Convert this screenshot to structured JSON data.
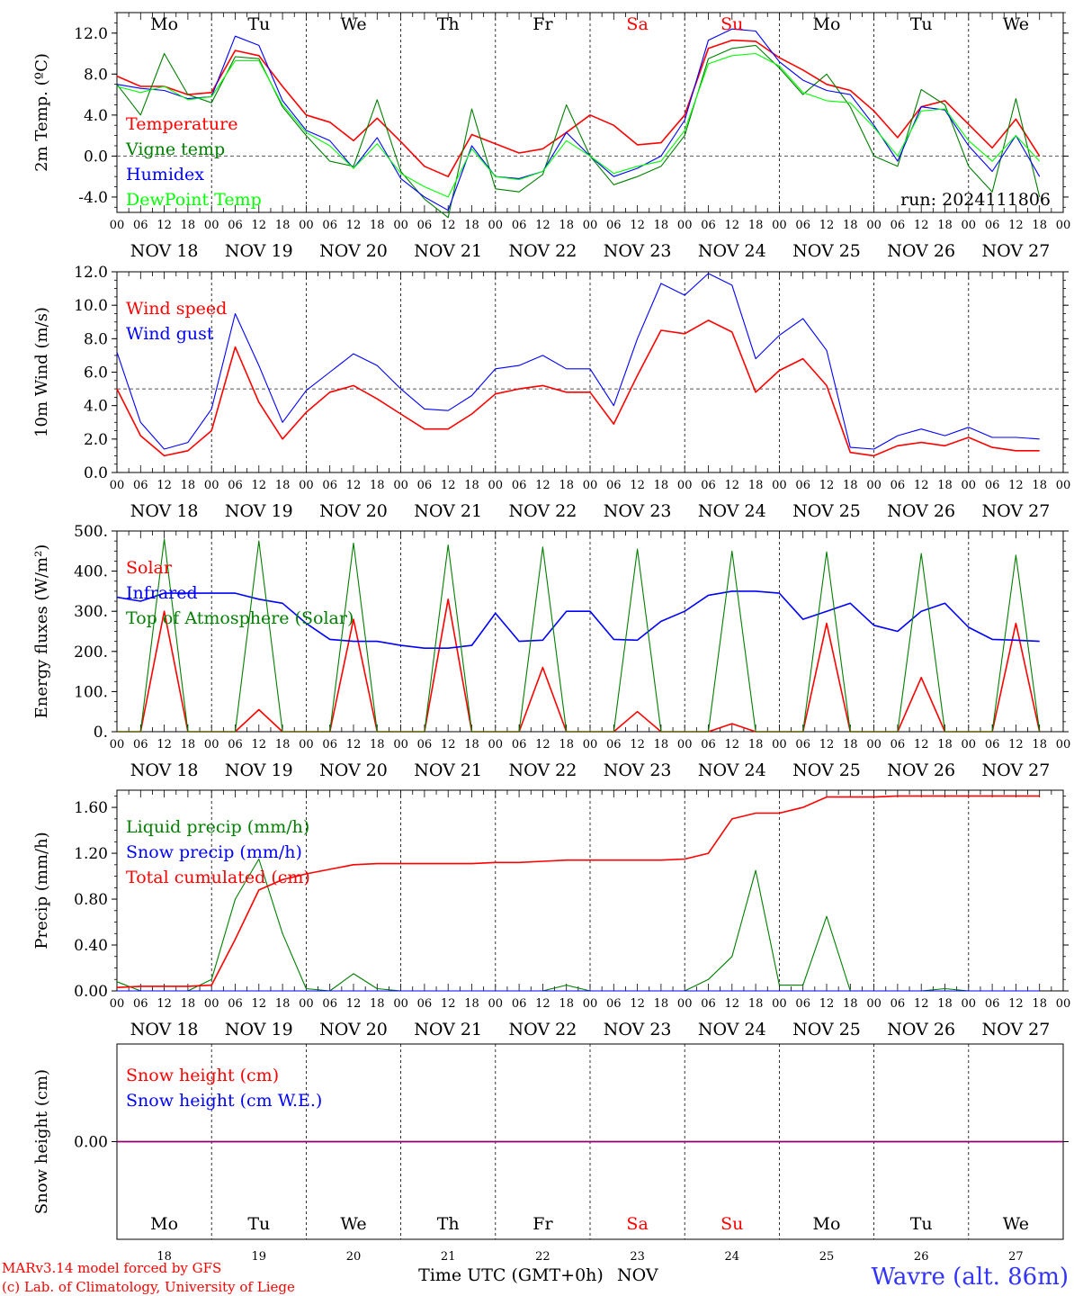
{
  "run_label": "run: 2024111806",
  "footer": {
    "credit_line1": "MARv3.14 model forced by GFS",
    "credit_line2": "(c) Lab. of Climatology, University of Liege",
    "xlabel": "Time UTC (GMT+0h)",
    "month": "NOV",
    "station": "Wavre (alt. 86m)"
  },
  "days": [
    "NOV 18",
    "NOV 19",
    "NOV 20",
    "NOV 21",
    "NOV 22",
    "NOV 23",
    "NOV 24",
    "NOV 25",
    "NOV 26",
    "NOV 27"
  ],
  "day_numbers": [
    "18",
    "19",
    "20",
    "21",
    "22",
    "23",
    "24",
    "25",
    "26",
    "27"
  ],
  "weekdays": [
    "Mo",
    "Tu",
    "We",
    "Th",
    "Fr",
    "Sa",
    "Su",
    "Mo",
    "Tu",
    "We"
  ],
  "hour_ticks": [
    "00",
    "06",
    "12",
    "18"
  ],
  "final_hour_tick": "00",
  "colors": {
    "red": "#ff0000",
    "green": "#007f00",
    "blue": "#0000ff",
    "lime": "#00ff00",
    "weekend": "#ff0000",
    "station": "#3333ff",
    "snowline": "#7f007f"
  },
  "chart_data": [
    {
      "type": "line",
      "ylabel": "2m Temp. (ºC)",
      "ylim": [
        -5.5,
        14
      ],
      "yticks": [
        "-4.0",
        "0.0",
        "4.0",
        "8.0",
        "12.0"
      ],
      "ytick_values": [
        -4,
        0,
        4,
        8,
        12
      ],
      "reference_line": 0,
      "x_hours": [
        0,
        6,
        12,
        18,
        24,
        30,
        36,
        42,
        48,
        54,
        60,
        66,
        72,
        78,
        84,
        90,
        96,
        102,
        108,
        114,
        120,
        126,
        132,
        138,
        144,
        150,
        156,
        162,
        168,
        174,
        180,
        186,
        192,
        198,
        204,
        210,
        216,
        222,
        228,
        234
      ],
      "series": [
        {
          "name": "Temperature",
          "color": "red",
          "values": [
            7.8,
            6.8,
            6.8,
            6,
            6.2,
            10.3,
            9.8,
            6.8,
            4,
            3.3,
            1.5,
            3.7,
            1.4,
            -1,
            -2,
            2.1,
            1.2,
            0.3,
            0.7,
            2.3,
            4,
            3,
            1.1,
            1.3,
            4,
            10.5,
            11.3,
            11.2,
            9.6,
            8.4,
            7,
            6.4,
            4.4,
            1.8,
            4.8,
            5.4,
            3.1,
            0.8,
            3.6,
            0
          ]
        },
        {
          "name": "Vigne temp",
          "color": "green",
          "values": [
            7,
            4,
            10,
            6,
            5.2,
            9.7,
            9.5,
            4.8,
            2,
            -0.5,
            -1,
            5.5,
            -1.5,
            -4.2,
            -6,
            4.6,
            -3.2,
            -3.5,
            -1.8,
            5,
            0,
            -2.8,
            -2,
            -1,
            2,
            9.5,
            10.5,
            10.8,
            8.6,
            6,
            8,
            4.8,
            0,
            -1,
            6.5,
            5,
            -1,
            -3.5,
            5.6,
            -4
          ]
        },
        {
          "name": "Humidex",
          "color": "blue",
          "values": [
            7,
            6.6,
            6.4,
            5.6,
            5.8,
            11.7,
            10.8,
            5.4,
            2.5,
            1.5,
            -1.2,
            1.8,
            -2.2,
            -4,
            -5.3,
            1,
            -2,
            -2.2,
            -1.5,
            2.3,
            0,
            -2,
            -1.2,
            0,
            3.5,
            11.3,
            12.4,
            12.2,
            9.2,
            7.4,
            6.4,
            6,
            3,
            -0.5,
            4.8,
            4.5,
            1,
            -1.5,
            2,
            -2
          ]
        },
        {
          "name": "DewPoint Temp",
          "color": "lime",
          "values": [
            6.8,
            6.2,
            6.8,
            5.5,
            5.8,
            9.3,
            9.3,
            5,
            2.3,
            1,
            -1.2,
            1.2,
            -1.7,
            -3,
            -4,
            0.7,
            -2,
            -2.3,
            -1.5,
            1.5,
            0,
            -1.7,
            -1,
            -0.5,
            2.5,
            9,
            9.8,
            10,
            8.8,
            6.2,
            5.4,
            5.2,
            2.8,
            0,
            4.4,
            4.6,
            1.5,
            -0.5,
            2,
            -0.5
          ]
        }
      ]
    },
    {
      "type": "line",
      "ylabel": "10m Wind (m/s)",
      "ylim": [
        0,
        12
      ],
      "yticks": [
        "0.0",
        "2.0",
        "4.0",
        "6.0",
        "8.0",
        "10.0",
        "12.0"
      ],
      "ytick_values": [
        0,
        2,
        4,
        6,
        8,
        10,
        12
      ],
      "reference_line": 5,
      "x_hours": [
        0,
        6,
        12,
        18,
        24,
        30,
        36,
        42,
        48,
        54,
        60,
        66,
        72,
        78,
        84,
        90,
        96,
        102,
        108,
        114,
        120,
        126,
        132,
        138,
        144,
        150,
        156,
        162,
        168,
        174,
        180,
        186,
        192,
        198,
        204,
        210,
        216,
        222,
        228,
        234
      ],
      "series": [
        {
          "name": "Wind speed",
          "color": "red",
          "values": [
            5,
            2.2,
            1,
            1.3,
            2.5,
            7.5,
            4.2,
            2,
            3.6,
            4.8,
            5.2,
            4.4,
            3.5,
            2.6,
            2.6,
            3.5,
            4.7,
            5,
            5.2,
            4.8,
            4.8,
            2.9,
            5.8,
            8.5,
            8.3,
            9.1,
            8.4,
            4.8,
            6.1,
            6.8,
            5.2,
            1.2,
            1,
            1.6,
            1.8,
            1.6,
            2.1,
            1.5,
            1.3,
            1.3
          ]
        },
        {
          "name": "Wind gust",
          "color": "blue",
          "values": [
            7.2,
            3,
            1.4,
            1.8,
            3.8,
            9.5,
            6.4,
            3,
            4.9,
            6,
            7.1,
            6.4,
            5,
            3.8,
            3.7,
            4.6,
            6.2,
            6.4,
            7,
            6.2,
            6.2,
            4,
            8,
            11.3,
            10.6,
            11.9,
            11.2,
            6.8,
            8.2,
            9.2,
            7.3,
            1.5,
            1.4,
            2.2,
            2.6,
            2.2,
            2.7,
            2.1,
            2.1,
            2
          ]
        }
      ]
    },
    {
      "type": "line",
      "ylabel": "Energy fluxes (W/m²)",
      "ylim": [
        0,
        500
      ],
      "yticks": [
        "0.",
        "100.",
        "200.",
        "300.",
        "400.",
        "500."
      ],
      "ytick_values": [
        0,
        100,
        200,
        300,
        400,
        500
      ],
      "x_hours": [
        0,
        6,
        12,
        18,
        24,
        30,
        36,
        42,
        48,
        54,
        60,
        66,
        72,
        78,
        84,
        90,
        96,
        102,
        108,
        114,
        120,
        126,
        132,
        138,
        144,
        150,
        156,
        162,
        168,
        174,
        180,
        186,
        192,
        198,
        204,
        210,
        216,
        222,
        228,
        234
      ],
      "series": [
        {
          "name": "Solar",
          "color": "red",
          "values": [
            0,
            0,
            300,
            0,
            0,
            0,
            55,
            0,
            0,
            0,
            280,
            0,
            0,
            0,
            330,
            0,
            0,
            0,
            160,
            0,
            0,
            0,
            50,
            0,
            0,
            0,
            20,
            0,
            0,
            0,
            270,
            0,
            0,
            0,
            135,
            0,
            0,
            0,
            270,
            0
          ]
        },
        {
          "name": "Infrared",
          "color": "blue",
          "values": [
            335,
            325,
            345,
            345,
            345,
            345,
            330,
            320,
            270,
            230,
            225,
            225,
            215,
            208,
            208,
            215,
            295,
            225,
            228,
            300,
            300,
            230,
            228,
            275,
            300,
            340,
            350,
            350,
            345,
            280,
            300,
            320,
            265,
            250,
            300,
            320,
            260,
            230,
            228,
            225
          ]
        },
        {
          "name": "Top of Atmosphere (Solar)",
          "color": "green",
          "values": [
            0,
            0,
            480,
            0,
            0,
            0,
            475,
            0,
            0,
            0,
            470,
            0,
            0,
            0,
            465,
            0,
            0,
            0,
            460,
            0,
            0,
            0,
            455,
            0,
            0,
            0,
            450,
            0,
            0,
            0,
            448,
            0,
            0,
            0,
            444,
            0,
            0,
            0,
            440,
            0
          ]
        }
      ]
    },
    {
      "type": "line",
      "ylabel": "Precip (mm/h)",
      "ylim": [
        0,
        1.75
      ],
      "yticks": [
        "0.00",
        "0.40",
        "0.80",
        "1.20",
        "1.60"
      ],
      "ytick_values": [
        0,
        0.4,
        0.8,
        1.2,
        1.6
      ],
      "x_hours": [
        0,
        6,
        12,
        18,
        24,
        30,
        36,
        42,
        48,
        54,
        60,
        66,
        72,
        78,
        84,
        90,
        96,
        102,
        108,
        114,
        120,
        126,
        132,
        138,
        144,
        150,
        156,
        162,
        168,
        174,
        180,
        186,
        192,
        198,
        204,
        210,
        216,
        222,
        228,
        234
      ],
      "series": [
        {
          "name": "Liquid precip (mm/h)",
          "color": "green",
          "values": [
            0.08,
            0,
            0,
            0,
            0.1,
            0.8,
            1.15,
            0.5,
            0.02,
            0,
            0.15,
            0.02,
            0,
            0,
            0,
            0,
            0,
            0,
            0,
            0.05,
            0,
            0,
            0,
            0,
            0,
            0.1,
            0.3,
            1.05,
            0.05,
            0.05,
            0.65,
            0,
            0,
            0,
            0,
            0.02,
            0,
            0,
            0,
            0
          ]
        },
        {
          "name": "Snow precip (mm/h)",
          "color": "blue",
          "values": [
            0,
            0,
            0,
            0,
            0,
            0,
            0,
            0,
            0,
            0,
            0,
            0,
            0,
            0,
            0,
            0,
            0,
            0,
            0,
            0,
            0,
            0,
            0,
            0,
            0,
            0,
            0,
            0,
            0,
            0,
            0,
            0,
            0,
            0,
            0,
            0,
            0,
            0,
            0,
            0
          ]
        },
        {
          "name": "Total cumulated (cm)",
          "color": "red",
          "values": [
            0.03,
            0.04,
            0.04,
            0.04,
            0.05,
            0.45,
            0.88,
            0.97,
            1.02,
            1.06,
            1.1,
            1.11,
            1.11,
            1.11,
            1.11,
            1.11,
            1.12,
            1.12,
            1.13,
            1.14,
            1.14,
            1.14,
            1.14,
            1.14,
            1.15,
            1.2,
            1.5,
            1.55,
            1.55,
            1.6,
            1.69,
            1.69,
            1.69,
            1.7,
            1.7,
            1.7,
            1.7,
            1.7,
            1.7,
            1.7
          ]
        }
      ]
    },
    {
      "type": "line",
      "ylabel": "Snow height (cm)",
      "ylim": [
        -1,
        1
      ],
      "yticks": [
        "0.00"
      ],
      "ytick_values": [
        0
      ],
      "x_hours": [
        0,
        240
      ],
      "series": [
        {
          "name": "Snow height (cm)",
          "color": "red",
          "values": [
            0,
            0
          ]
        },
        {
          "name": "Snow height (cm W.E.)",
          "color": "blue",
          "values": [
            0,
            0
          ]
        }
      ]
    }
  ]
}
